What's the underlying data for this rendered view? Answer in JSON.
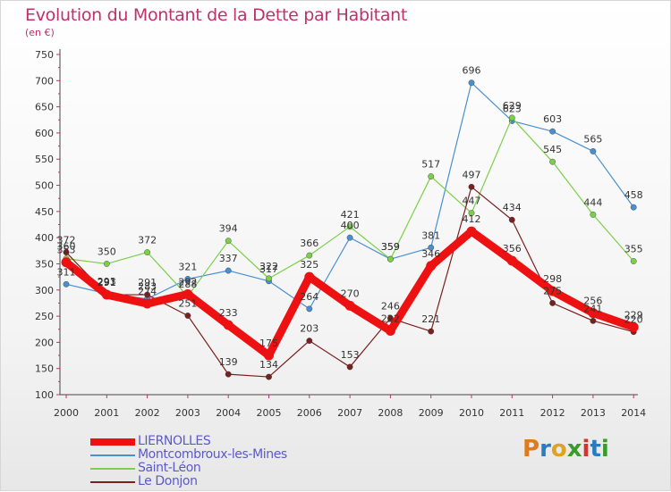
{
  "title": "Evolution du Montant de la Dette par Habitant",
  "unit_label": "(en €)",
  "brand": {
    "text": "Proxiti",
    "letter_colors": [
      "#e07a1f",
      "#2a7bc2",
      "#e0a21f",
      "#3a9b2c",
      "#d0362e",
      "#2a7bc2",
      "#3a9b2c"
    ]
  },
  "chart_data": {
    "type": "line",
    "title": "Evolution du Montant de la Dette par Habitant",
    "ylabel": "(en €)",
    "xlabel": "",
    "x": [
      "2000",
      "2001",
      "2002",
      "2003",
      "2004",
      "2005",
      "2006",
      "2007",
      "2008",
      "2009",
      "2010",
      "2011",
      "2012",
      "2013",
      "2014"
    ],
    "ylim": [
      100,
      750
    ],
    "yticks": [
      100,
      150,
      200,
      250,
      300,
      350,
      400,
      450,
      500,
      550,
      600,
      650,
      700,
      750
    ],
    "grid": false,
    "legend_position": "bottom-left",
    "series": [
      {
        "name": "LIERNOLLES",
        "color": "#ee1111",
        "values": [
          353,
          291,
          274,
          292,
          233,
          175,
          325,
          270,
          222,
          346,
          412,
          356,
          298,
          256,
          229
        ]
      },
      {
        "name": "Montcombroux-les-Mines",
        "color": "#4a8fd0",
        "values": [
          311,
          293,
          283,
          321,
          337,
          317,
          264,
          400,
          359,
          381,
          696,
          623,
          603,
          565,
          458
        ]
      },
      {
        "name": "Saint-Léon",
        "color": "#7ccf4a",
        "values": [
          360,
          350,
          372,
          288,
          394,
          322,
          366,
          421,
          359,
          517,
          447,
          629,
          545,
          444,
          355
        ]
      },
      {
        "name": "Le Donjon",
        "color": "#7a2020",
        "values": [
          372,
          291,
          291,
          251,
          139,
          134,
          203,
          153,
          246,
          221,
          497,
          434,
          275,
          241,
          220
        ]
      }
    ]
  }
}
